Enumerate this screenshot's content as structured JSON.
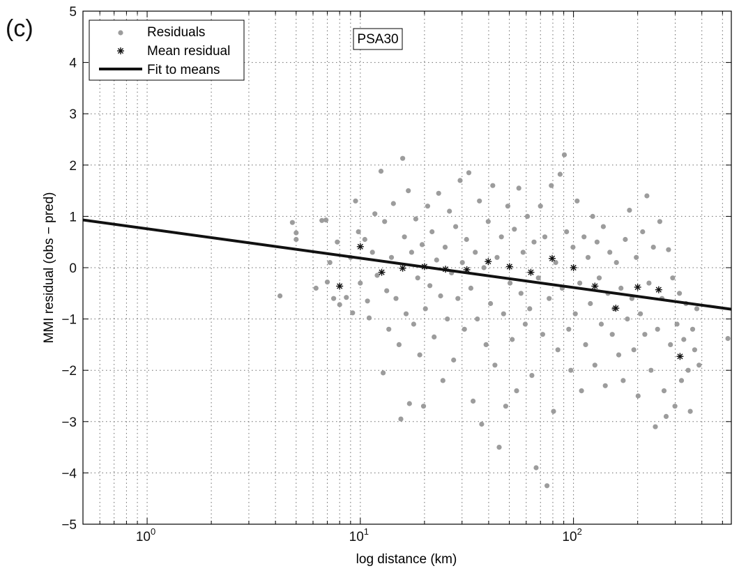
{
  "panel_label": "(c)",
  "colors": {
    "residual": "#9c9c9c",
    "mean": "#111111",
    "fit": "#111111",
    "grid": "#6a6a6a",
    "axis": "#000000"
  },
  "chart_data": {
    "type": "scatter",
    "xlabel": "log distance (km)",
    "ylabel": "MMI residual (obs − pred)",
    "xscale": "log",
    "xlim": [
      0.5,
      550
    ],
    "ylim": [
      -5,
      5
    ],
    "x_ticks": [
      {
        "value": 1,
        "base": "10",
        "exp": "0"
      },
      {
        "value": 10,
        "base": "10",
        "exp": "1"
      },
      {
        "value": 100,
        "base": "10",
        "exp": "2"
      }
    ],
    "y_ticks": [
      5,
      4,
      3,
      2,
      1,
      0,
      -1,
      -2,
      -3,
      -4,
      -5
    ],
    "y_tick_labels": [
      "5",
      "4",
      "3",
      "2",
      "1",
      "0",
      "−1",
      "−2",
      "−3",
      "−4",
      "−5"
    ],
    "grid": true,
    "legend_position": "top-left",
    "annotation": "PSA30",
    "legend": [
      "Residuals",
      "Mean residual",
      "Fit to means"
    ],
    "series": [
      {
        "name": "Residuals",
        "marker": "dot",
        "points": [
          [
            4.2,
            -0.55
          ],
          [
            4.8,
            0.88
          ],
          [
            5.0,
            0.55
          ],
          [
            5.0,
            0.68
          ],
          [
            6.2,
            -0.4
          ],
          [
            6.6,
            0.92
          ],
          [
            6.9,
            0.93
          ],
          [
            7.0,
            -0.28
          ],
          [
            7.2,
            0.1
          ],
          [
            7.5,
            -0.6
          ],
          [
            7.8,
            0.5
          ],
          [
            8.0,
            -0.72
          ],
          [
            8.6,
            -0.58
          ],
          [
            9.0,
            0.2
          ],
          [
            9.2,
            -0.88
          ],
          [
            9.5,
            1.3
          ],
          [
            9.8,
            0.7
          ],
          [
            10.0,
            -0.3
          ],
          [
            10.5,
            0.55
          ],
          [
            10.8,
            -0.65
          ],
          [
            11.0,
            -0.98
          ],
          [
            11.4,
            0.3
          ],
          [
            11.7,
            1.05
          ],
          [
            12.0,
            -0.15
          ],
          [
            12.5,
            1.88
          ],
          [
            12.8,
            -2.05
          ],
          [
            13.0,
            0.9
          ],
          [
            13.3,
            -0.45
          ],
          [
            13.6,
            -1.2
          ],
          [
            14.0,
            0.2
          ],
          [
            14.3,
            1.25
          ],
          [
            14.7,
            -0.6
          ],
          [
            15.2,
            -1.5
          ],
          [
            15.5,
            -2.95
          ],
          [
            15.8,
            2.13
          ],
          [
            16.1,
            0.6
          ],
          [
            16.4,
            -0.9
          ],
          [
            16.8,
            1.5
          ],
          [
            17.0,
            -2.65
          ],
          [
            17.4,
            0.3
          ],
          [
            17.8,
            -1.1
          ],
          [
            18.2,
            0.95
          ],
          [
            18.6,
            -0.2
          ],
          [
            19.0,
            -1.7
          ],
          [
            19.5,
            0.45
          ],
          [
            19.8,
            -2.7
          ],
          [
            20.2,
            -0.8
          ],
          [
            20.7,
            1.2
          ],
          [
            21.2,
            -0.35
          ],
          [
            21.7,
            0.7
          ],
          [
            22.2,
            -1.35
          ],
          [
            22.8,
            0.15
          ],
          [
            23.3,
            1.45
          ],
          [
            23.8,
            -0.55
          ],
          [
            24.4,
            -2.2
          ],
          [
            25.0,
            0.4
          ],
          [
            25.6,
            -1.0
          ],
          [
            26.2,
            1.1
          ],
          [
            26.8,
            -0.1
          ],
          [
            27.4,
            -1.8
          ],
          [
            28.0,
            0.8
          ],
          [
            28.7,
            -0.6
          ],
          [
            29.4,
            1.7
          ],
          [
            30.1,
            0.1
          ],
          [
            30.8,
            -1.2
          ],
          [
            31.5,
            0.55
          ],
          [
            32.3,
            1.85
          ],
          [
            33.0,
            -0.4
          ],
          [
            33.8,
            -2.6
          ],
          [
            34.6,
            0.3
          ],
          [
            35.4,
            -1.0
          ],
          [
            36.2,
            1.3
          ],
          [
            37.1,
            -3.05
          ],
          [
            38.0,
            0.0
          ],
          [
            38.9,
            -1.5
          ],
          [
            39.8,
            0.9
          ],
          [
            40.8,
            -0.7
          ],
          [
            41.8,
            1.6
          ],
          [
            42.8,
            -1.9
          ],
          [
            43.8,
            0.2
          ],
          [
            44.8,
            -3.5
          ],
          [
            45.9,
            0.6
          ],
          [
            47.0,
            -0.9
          ],
          [
            48.1,
            -2.7
          ],
          [
            49.2,
            1.2
          ],
          [
            50.4,
            -0.3
          ],
          [
            51.6,
            -1.4
          ],
          [
            52.8,
            0.75
          ],
          [
            54.1,
            -2.4
          ],
          [
            55.4,
            1.55
          ],
          [
            56.7,
            -0.5
          ],
          [
            58.0,
            0.3
          ],
          [
            59.4,
            -1.1
          ],
          [
            60.8,
            1.0
          ],
          [
            62.3,
            -0.8
          ],
          [
            63.8,
            -2.1
          ],
          [
            65.3,
            0.5
          ],
          [
            66.8,
            -3.9
          ],
          [
            68.4,
            -0.2
          ],
          [
            70.0,
            1.2
          ],
          [
            71.7,
            -1.3
          ],
          [
            73.4,
            0.6
          ],
          [
            75.1,
            -4.25
          ],
          [
            76.9,
            -0.6
          ],
          [
            78.7,
            1.6
          ],
          [
            80.6,
            -2.8
          ],
          [
            82.5,
            0.1
          ],
          [
            84.5,
            -1.6
          ],
          [
            86.5,
            1.82
          ],
          [
            88.5,
            -0.4
          ],
          [
            90.6,
            2.2
          ],
          [
            92.8,
            0.7
          ],
          [
            95.0,
            -1.2
          ],
          [
            97.2,
            -2.0
          ],
          [
            99.5,
            0.4
          ],
          [
            102,
            -0.9
          ],
          [
            104,
            1.3
          ],
          [
            107,
            -0.3
          ],
          [
            109,
            -2.4
          ],
          [
            112,
            0.6
          ],
          [
            114,
            -1.5
          ],
          [
            117,
            0.2
          ],
          [
            120,
            -0.7
          ],
          [
            123,
            1.0
          ],
          [
            126,
            -1.9
          ],
          [
            129,
            0.5
          ],
          [
            132,
            -0.2
          ],
          [
            135,
            -1.1
          ],
          [
            138,
            0.8
          ],
          [
            141,
            -2.3
          ],
          [
            145,
            -0.5
          ],
          [
            148,
            0.3
          ],
          [
            152,
            -1.3
          ],
          [
            155,
            -0.8
          ],
          [
            159,
            0.1
          ],
          [
            163,
            -1.7
          ],
          [
            167,
            -0.4
          ],
          [
            171,
            -2.2
          ],
          [
            175,
            0.55
          ],
          [
            179,
            -1.0
          ],
          [
            183,
            1.12
          ],
          [
            188,
            -0.6
          ],
          [
            192,
            -1.6
          ],
          [
            197,
            0.2
          ],
          [
            201,
            -2.5
          ],
          [
            206,
            -0.9
          ],
          [
            211,
            0.7
          ],
          [
            216,
            -1.3
          ],
          [
            221,
            1.4
          ],
          [
            226,
            -0.3
          ],
          [
            231,
            -2.0
          ],
          [
            237,
            0.4
          ],
          [
            242,
            -3.1
          ],
          [
            248,
            -1.2
          ],
          [
            254,
            0.9
          ],
          [
            260,
            -0.6
          ],
          [
            266,
            -2.4
          ],
          [
            272,
            -2.9
          ],
          [
            279,
            0.35
          ],
          [
            285,
            -1.5
          ],
          [
            292,
            -0.2
          ],
          [
            299,
            -2.7
          ],
          [
            306,
            -1.1
          ],
          [
            314,
            -0.5
          ],
          [
            321,
            -2.2
          ],
          [
            329,
            -1.4
          ],
          [
            337,
            -0.7
          ],
          [
            345,
            -2.0
          ],
          [
            353,
            -2.8
          ],
          [
            362,
            -1.2
          ],
          [
            370,
            -1.6
          ],
          [
            379,
            -0.8
          ],
          [
            388,
            -1.9
          ],
          [
            530,
            -1.38
          ]
        ]
      },
      {
        "name": "Mean residual",
        "marker": "asterisk",
        "x": [
          8.0,
          10.0,
          12.6,
          15.8,
          20.0,
          25.1,
          31.6,
          39.8,
          50.1,
          63.1,
          79.4,
          100,
          126,
          158,
          200,
          251,
          316
        ],
        "y": [
          -0.36,
          0.41,
          -0.09,
          -0.01,
          0.02,
          -0.03,
          -0.04,
          0.12,
          0.02,
          -0.09,
          0.18,
          0.0,
          -0.36,
          -0.79,
          -0.38,
          -0.43,
          -1.73
        ]
      },
      {
        "name": "Fit to means",
        "marker": "line",
        "x": [
          0.5,
          550
        ],
        "y": [
          0.93,
          -0.81
        ]
      }
    ]
  }
}
